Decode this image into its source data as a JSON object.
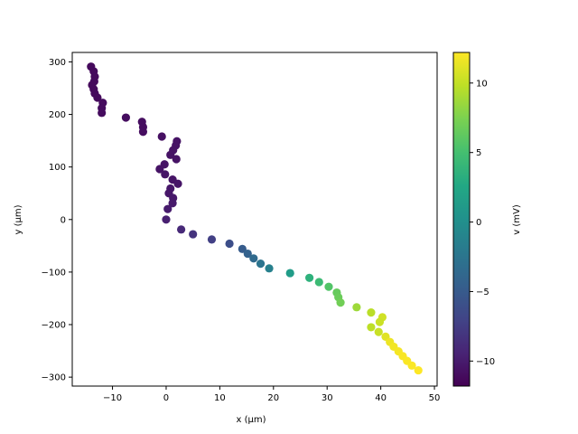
{
  "chart_data": {
    "type": "scatter",
    "title": "",
    "xlabel": "x (µm)",
    "ylabel": "y (µm)",
    "xlim": [
      -17.5,
      50.5
    ],
    "ylim": [
      -317,
      318
    ],
    "xticks": [
      -10,
      0,
      10,
      20,
      30,
      40,
      50
    ],
    "yticks": [
      -300,
      -200,
      -100,
      0,
      100,
      200,
      300
    ],
    "grid": false,
    "colorbar": {
      "label": "v (mV)",
      "colormap": "viridis",
      "range": [
        -11.8,
        12.2
      ],
      "ticks": [
        -10,
        -5,
        0,
        5,
        10
      ]
    },
    "points": [
      {
        "x": -14.0,
        "y": 291,
        "v": -11.2
      },
      {
        "x": -13.5,
        "y": 282,
        "v": -11.2
      },
      {
        "x": -13.3,
        "y": 272,
        "v": -11.2
      },
      {
        "x": -13.4,
        "y": 263,
        "v": -11.2
      },
      {
        "x": -13.8,
        "y": 256,
        "v": -11.2
      },
      {
        "x": -13.5,
        "y": 248,
        "v": -11.2
      },
      {
        "x": -13.3,
        "y": 240,
        "v": -11.2
      },
      {
        "x": -12.8,
        "y": 232,
        "v": -11.2
      },
      {
        "x": -11.8,
        "y": 222,
        "v": -11.1
      },
      {
        "x": -12.0,
        "y": 212,
        "v": -11.1
      },
      {
        "x": -12.0,
        "y": 203,
        "v": -11.1
      },
      {
        "x": -7.5,
        "y": 194,
        "v": -11.0
      },
      {
        "x": -4.5,
        "y": 186,
        "v": -10.9
      },
      {
        "x": -4.3,
        "y": 176,
        "v": -10.9
      },
      {
        "x": -4.3,
        "y": 167,
        "v": -10.9
      },
      {
        "x": -0.8,
        "y": 158,
        "v": -10.8
      },
      {
        "x": 2.0,
        "y": 149,
        "v": -10.6
      },
      {
        "x": 1.8,
        "y": 141,
        "v": -10.6
      },
      {
        "x": 1.3,
        "y": 132,
        "v": -10.6
      },
      {
        "x": 0.8,
        "y": 123,
        "v": -10.6
      },
      {
        "x": 1.9,
        "y": 115,
        "v": -10.6
      },
      {
        "x": -0.3,
        "y": 105,
        "v": -10.6
      },
      {
        "x": -1.2,
        "y": 96,
        "v": -10.6
      },
      {
        "x": -0.2,
        "y": 86,
        "v": -10.5
      },
      {
        "x": 1.2,
        "y": 76,
        "v": -10.5
      },
      {
        "x": 2.2,
        "y": 68,
        "v": -10.4
      },
      {
        "x": 0.8,
        "y": 59,
        "v": -10.3
      },
      {
        "x": 0.5,
        "y": 50,
        "v": -10.3
      },
      {
        "x": 1.3,
        "y": 41,
        "v": -10.2
      },
      {
        "x": 1.2,
        "y": 31,
        "v": -10.1
      },
      {
        "x": 0.3,
        "y": 20,
        "v": -10.0
      },
      {
        "x": 0.0,
        "y": 0,
        "v": -9.7
      },
      {
        "x": 2.8,
        "y": -19,
        "v": -9.0
      },
      {
        "x": 5.0,
        "y": -28,
        "v": -8.3
      },
      {
        "x": 8.5,
        "y": -38,
        "v": -7.3
      },
      {
        "x": 11.8,
        "y": -46,
        "v": -6.1
      },
      {
        "x": 14.2,
        "y": -56,
        "v": -4.9
      },
      {
        "x": 15.2,
        "y": -65,
        "v": -4.3
      },
      {
        "x": 16.3,
        "y": -74,
        "v": -3.5
      },
      {
        "x": 17.6,
        "y": -84,
        "v": -2.6
      },
      {
        "x": 19.2,
        "y": -93,
        "v": -1.4
      },
      {
        "x": 23.1,
        "y": -102,
        "v": 1.3
      },
      {
        "x": 26.7,
        "y": -111,
        "v": 3.5
      },
      {
        "x": 28.5,
        "y": -119,
        "v": 4.5
      },
      {
        "x": 30.3,
        "y": -128,
        "v": 5.6
      },
      {
        "x": 31.8,
        "y": -139,
        "v": 6.5
      },
      {
        "x": 32.1,
        "y": -148,
        "v": 6.7
      },
      {
        "x": 32.5,
        "y": -158,
        "v": 7.0
      },
      {
        "x": 35.5,
        "y": -167,
        "v": 8.7
      },
      {
        "x": 38.2,
        "y": -177,
        "v": 9.7
      },
      {
        "x": 40.3,
        "y": -186,
        "v": 10.5
      },
      {
        "x": 39.8,
        "y": -195,
        "v": 10.3
      },
      {
        "x": 38.2,
        "y": -205,
        "v": 9.8
      },
      {
        "x": 39.6,
        "y": -214,
        "v": 10.2
      },
      {
        "x": 40.9,
        "y": -223,
        "v": 11.1
      },
      {
        "x": 41.7,
        "y": -233,
        "v": 11.6
      },
      {
        "x": 42.4,
        "y": -242,
        "v": 11.8
      },
      {
        "x": 43.3,
        "y": -251,
        "v": 11.9
      },
      {
        "x": 44.1,
        "y": -260,
        "v": 12.0
      },
      {
        "x": 44.9,
        "y": -269,
        "v": 12.1
      },
      {
        "x": 45.8,
        "y": -278,
        "v": 12.1
      },
      {
        "x": 47.0,
        "y": -287,
        "v": 12.2
      }
    ]
  }
}
